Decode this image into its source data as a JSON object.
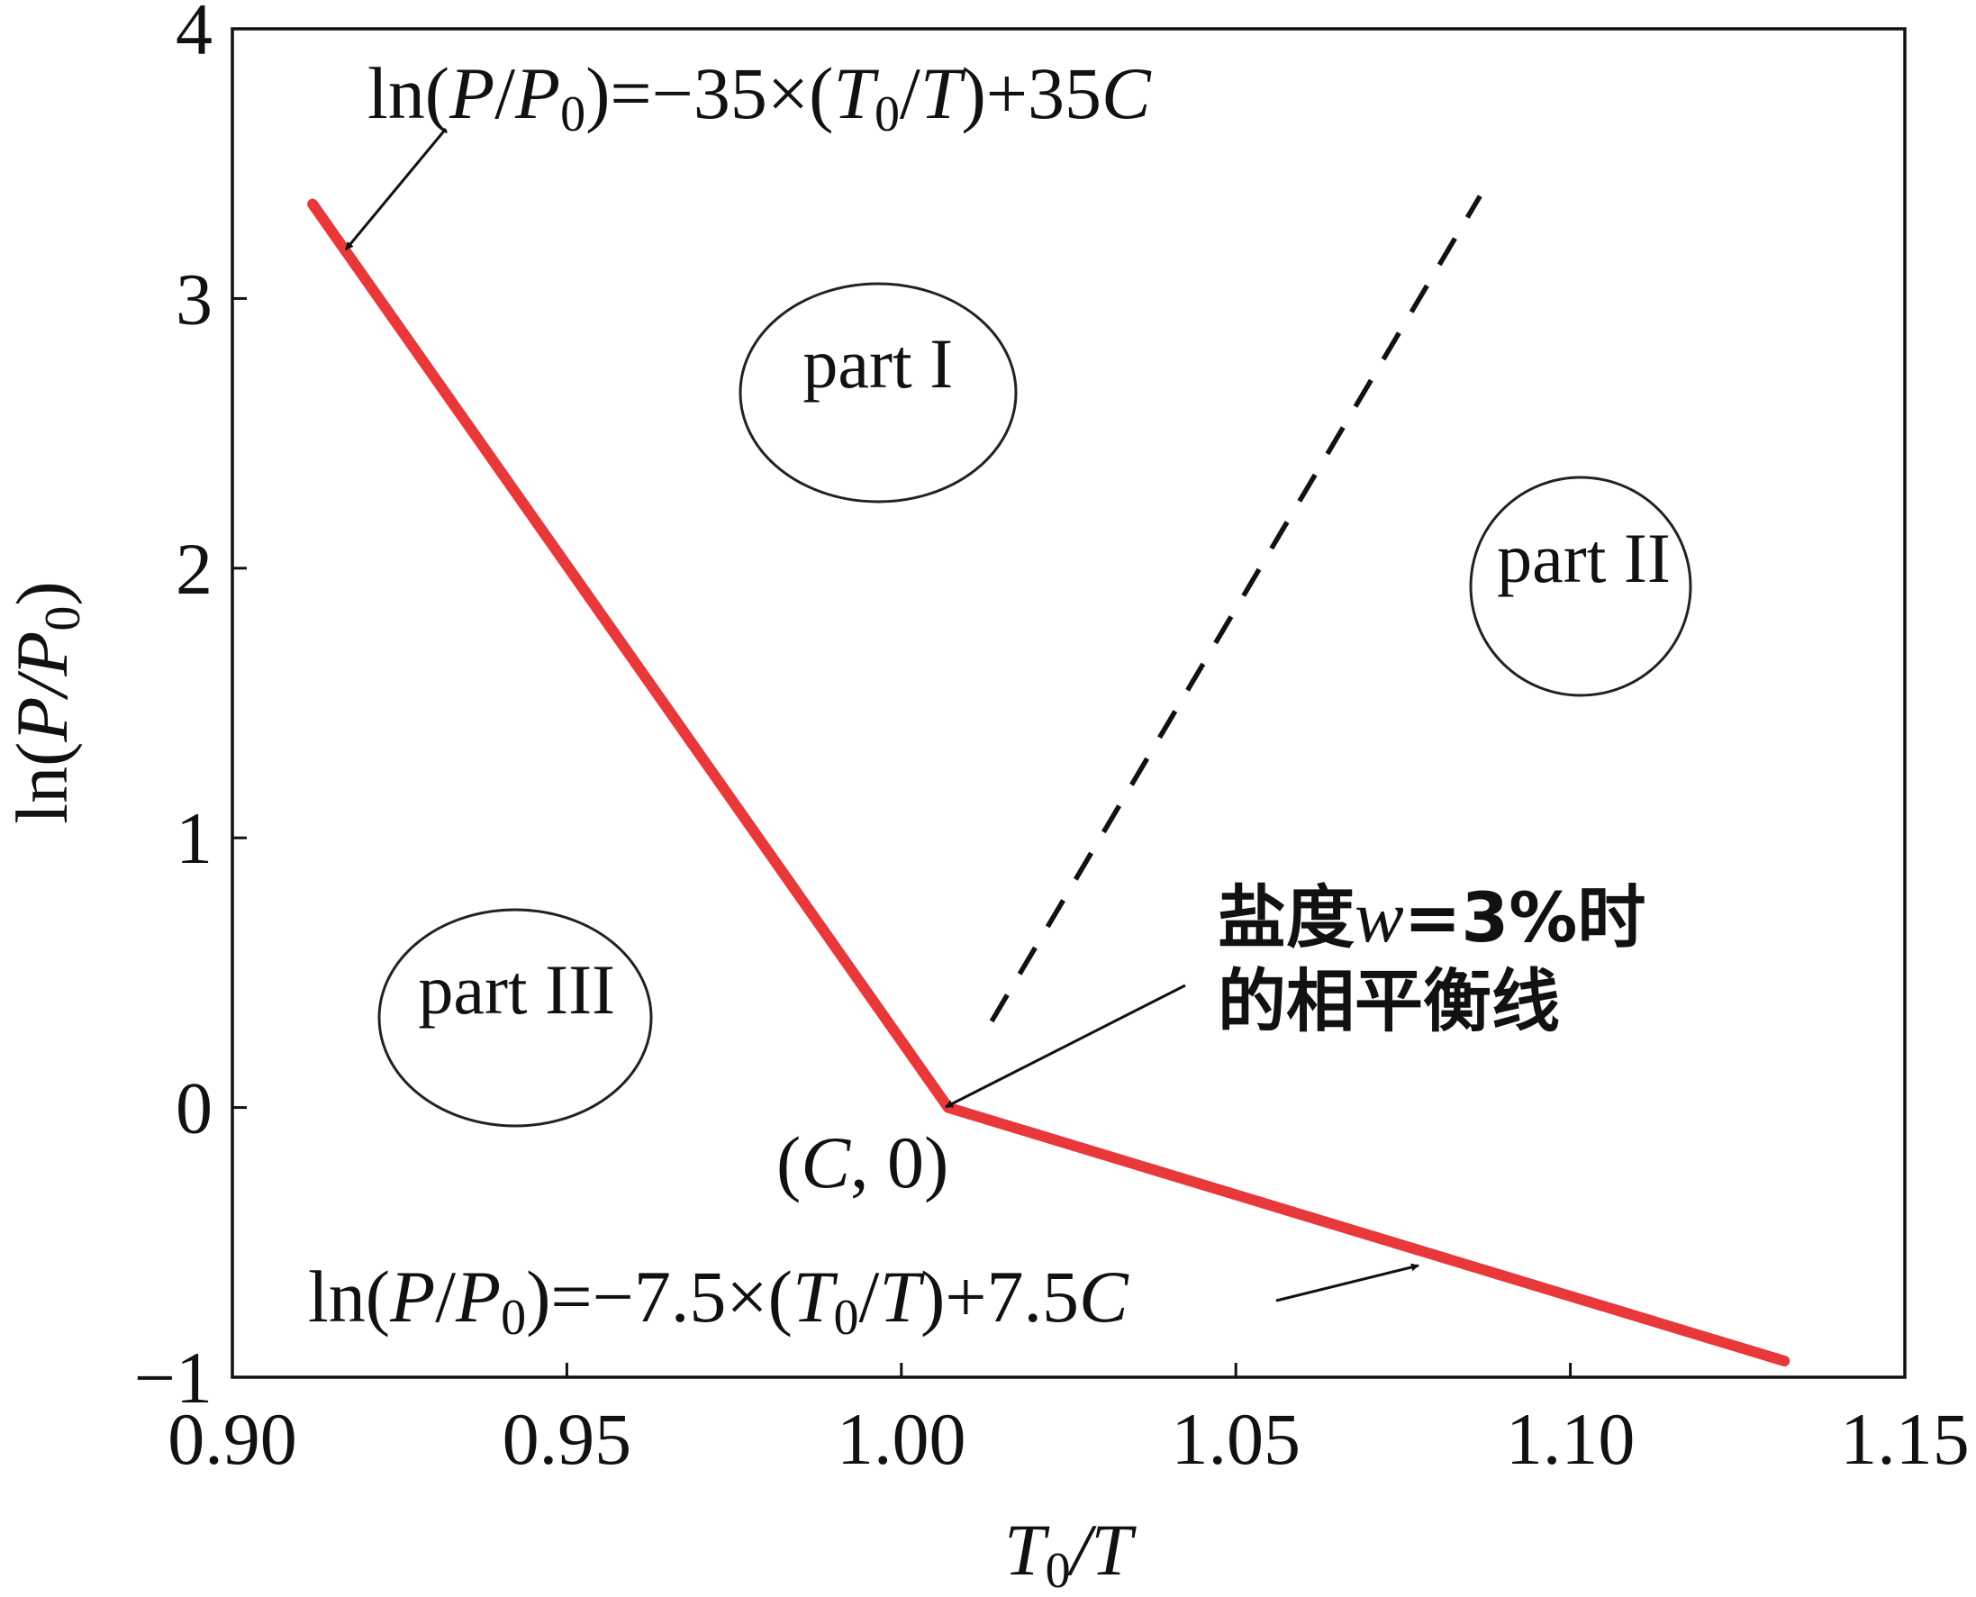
{
  "chart_data": {
    "type": "line",
    "xlabel": {
      "t": "T",
      "sub": "0",
      "rest": "/T"
    },
    "ylabel": {
      "pre": "ln(",
      "p": "P",
      "slash": "/",
      "p0": "P",
      "sub": "0",
      "post": ")"
    },
    "xlim": [
      0.9,
      1.15
    ],
    "ylim": [
      -1,
      4
    ],
    "x_ticks": [
      0.9,
      0.95,
      1.0,
      1.05,
      1.1,
      1.15
    ],
    "x_tick_labels": [
      "0.90",
      "0.95",
      "1.00",
      "1.05",
      "1.10",
      "1.15"
    ],
    "y_ticks": [
      -1,
      0,
      1,
      2,
      3,
      4
    ],
    "y_tick_labels": [
      "−1",
      "0",
      "1",
      "2",
      "3",
      "4"
    ],
    "series": [
      {
        "name": "phase-equilibrium-line",
        "color": "#e8383a",
        "style": "solid",
        "x": [
          0.912,
          1.007,
          1.132
        ],
        "y": [
          3.35,
          0.0,
          -0.94
        ]
      },
      {
        "name": "dashed-boundary",
        "color": "#111111",
        "style": "dashed",
        "x": [
          1.0135,
          1.0865
        ],
        "y": [
          0.32,
          3.38
        ]
      }
    ],
    "annotations": {
      "eq_upper": {
        "pre": "ln(",
        "p": "P",
        "slash": "/",
        "p0": "P",
        "sub": "0",
        "mid": ")=−35×(",
        "t0": "T",
        "t0sub": "0",
        "tslash": "/",
        "t": "T",
        "post": ")+35",
        "c": "C"
      },
      "eq_lower": {
        "pre": "ln(",
        "p": "P",
        "slash": "/",
        "p0": "P",
        "sub": "0",
        "mid": ")=−7.5×(",
        "t0": "T",
        "t0sub": "0",
        "tslash": "/",
        "t": "T",
        "post": ")+7.5",
        "c": "C"
      },
      "salinity_line1": {
        "a": "盐度",
        "w": "w",
        "b": "=3%时"
      },
      "salinity_line2": "的相平衡线",
      "point_label": {
        "open": "(",
        "c": "C",
        "rest": ", 0)"
      },
      "regions": [
        {
          "label": "part I",
          "x": 0.9965,
          "y": 2.67
        },
        {
          "label": "part II",
          "x": 1.102,
          "y": 1.95
        },
        {
          "label": "part III",
          "x": 0.9425,
          "y": 0.35
        }
      ]
    }
  }
}
